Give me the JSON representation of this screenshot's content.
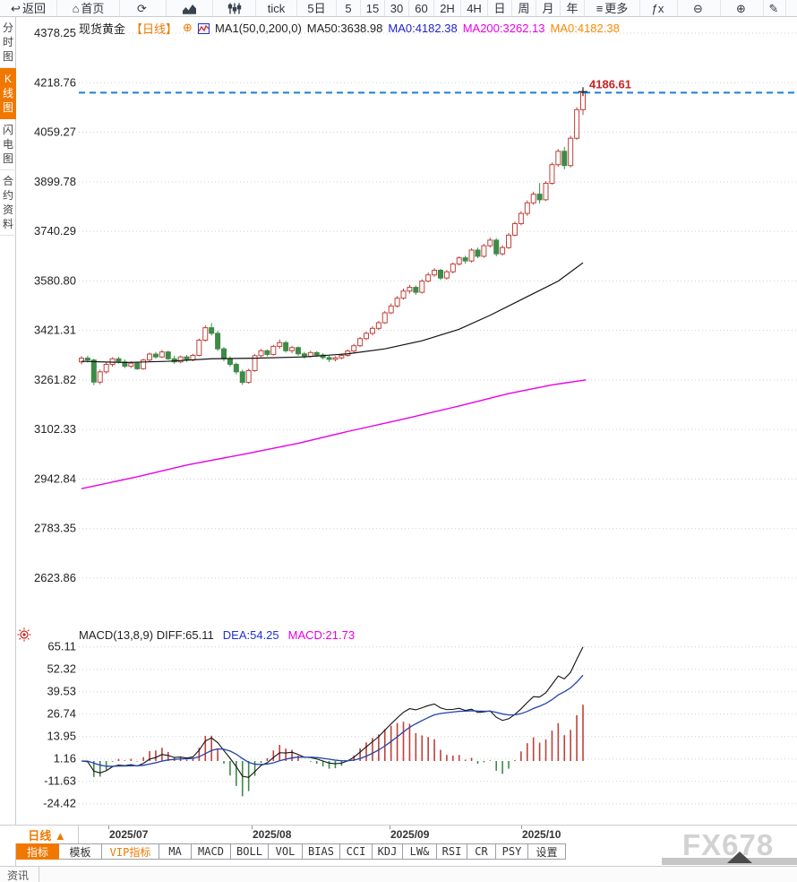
{
  "top_toolbar": {
    "items": [
      {
        "name": "back-button",
        "icon": "↩",
        "label": "返回"
      },
      {
        "name": "home-button",
        "icon": "⌂",
        "label": "首页"
      },
      {
        "name": "refresh-button",
        "icon": "⟳"
      },
      {
        "name": "area-chart-button",
        "icon": "@area"
      },
      {
        "name": "candlestick-button",
        "icon": "@candle"
      },
      {
        "name": "interval-tick-button",
        "label": "tick"
      },
      {
        "name": "interval-5d-button",
        "label": "5日"
      },
      {
        "name": "interval-5-button",
        "label": "5"
      },
      {
        "name": "interval-15-button",
        "label": "15"
      },
      {
        "name": "interval-30-button",
        "label": "30"
      },
      {
        "name": "interval-60-button",
        "label": "60"
      },
      {
        "name": "interval-2h-button",
        "label": "2H"
      },
      {
        "name": "interval-4h-button",
        "label": "4H"
      },
      {
        "name": "interval-day-button",
        "label": "日"
      },
      {
        "name": "interval-week-button",
        "label": "周"
      },
      {
        "name": "interval-month-button",
        "label": "月"
      },
      {
        "name": "interval-year-button",
        "label": "年"
      },
      {
        "name": "more-button",
        "icon": "≡",
        "label": "更多"
      },
      {
        "name": "formula-button",
        "icon": "ƒx"
      },
      {
        "name": "zoom-out-button",
        "icon": "⊖"
      },
      {
        "name": "zoom-in-button",
        "icon": "⊕"
      },
      {
        "name": "draw-button",
        "icon": "✎"
      }
    ]
  },
  "sidebar": {
    "items": [
      {
        "name": "tab-time-chart",
        "label": "分时图",
        "active": false
      },
      {
        "name": "tab-kline-chart",
        "label": "K线图",
        "active": true
      },
      {
        "name": "tab-lightning-chart",
        "label": "闪电图",
        "active": false
      },
      {
        "name": "tab-contract-info",
        "label": "合约资料",
        "active": false
      }
    ]
  },
  "chart_header": {
    "symbol": "现货黄金",
    "period": "【日线】",
    "plus_icon": "⊕",
    "ma_config": "MA1(50,0,200,0)",
    "ma50": "MA50:3638.98",
    "ma0_blue": "MA0:4182.38",
    "ma200": "MA200:3262.13",
    "ma0_orange": "MA0:4182.38"
  },
  "macd_header": {
    "main": "MACD(13,8,9) DIFF:65.11",
    "dea": "DEA:54.25",
    "macd": "MACD:21.73"
  },
  "chart_data": {
    "type": "candlestick",
    "symbol": "现货黄金",
    "period": "日线",
    "last_price": 4186.61,
    "y_ticks": [
      4378.25,
      4218.76,
      4059.27,
      3899.78,
      3740.29,
      3580.8,
      3421.31,
      3261.82,
      3102.33,
      2942.84,
      2783.35,
      2623.86
    ],
    "x_labels": [
      "2025/07",
      "2025/08",
      "2025/09",
      "2025/10"
    ],
    "candles": [
      [
        3320,
        3338,
        3312,
        3332
      ],
      [
        3332,
        3340,
        3318,
        3326
      ],
      [
        3326,
        3330,
        3245,
        3255
      ],
      [
        3255,
        3295,
        3248,
        3288
      ],
      [
        3288,
        3318,
        3282,
        3312
      ],
      [
        3312,
        3335,
        3305,
        3330
      ],
      [
        3330,
        3336,
        3315,
        3320
      ],
      [
        3320,
        3328,
        3300,
        3306
      ],
      [
        3306,
        3322,
        3300,
        3316
      ],
      [
        3316,
        3320,
        3294,
        3298
      ],
      [
        3298,
        3330,
        3295,
        3326
      ],
      [
        3326,
        3350,
        3320,
        3345
      ],
      [
        3345,
        3352,
        3330,
        3336
      ],
      [
        3336,
        3358,
        3332,
        3352
      ],
      [
        3352,
        3356,
        3326,
        3330
      ],
      [
        3330,
        3340,
        3314,
        3320
      ],
      [
        3320,
        3340,
        3316,
        3336
      ],
      [
        3336,
        3342,
        3320,
        3326
      ],
      [
        3326,
        3346,
        3322,
        3341
      ],
      [
        3341,
        3395,
        3338,
        3390
      ],
      [
        3390,
        3438,
        3385,
        3430
      ],
      [
        3430,
        3445,
        3405,
        3412
      ],
      [
        3412,
        3420,
        3355,
        3362
      ],
      [
        3362,
        3368,
        3322,
        3330
      ],
      [
        3330,
        3338,
        3305,
        3312
      ],
      [
        3312,
        3318,
        3280,
        3288
      ],
      [
        3288,
        3295,
        3246,
        3254
      ],
      [
        3254,
        3298,
        3250,
        3292
      ],
      [
        3292,
        3345,
        3288,
        3340
      ],
      [
        3340,
        3362,
        3335,
        3356
      ],
      [
        3356,
        3360,
        3338,
        3344
      ],
      [
        3344,
        3375,
        3340,
        3370
      ],
      [
        3370,
        3392,
        3362,
        3382
      ],
      [
        3382,
        3388,
        3350,
        3356
      ],
      [
        3356,
        3372,
        3348,
        3366
      ],
      [
        3366,
        3370,
        3340,
        3346
      ],
      [
        3346,
        3352,
        3330,
        3338
      ],
      [
        3338,
        3356,
        3334,
        3350
      ],
      [
        3350,
        3354,
        3336,
        3342
      ],
      [
        3342,
        3348,
        3328,
        3334
      ],
      [
        3334,
        3340,
        3320,
        3328
      ],
      [
        3328,
        3338,
        3322,
        3333
      ],
      [
        3333,
        3346,
        3328,
        3341
      ],
      [
        3341,
        3360,
        3336,
        3355
      ],
      [
        3355,
        3378,
        3350,
        3372
      ],
      [
        3372,
        3400,
        3368,
        3395
      ],
      [
        3395,
        3418,
        3390,
        3412
      ],
      [
        3412,
        3435,
        3405,
        3428
      ],
      [
        3428,
        3452,
        3422,
        3446
      ],
      [
        3446,
        3484,
        3442,
        3478
      ],
      [
        3478,
        3508,
        3474,
        3500
      ],
      [
        3500,
        3532,
        3495,
        3525
      ],
      [
        3525,
        3556,
        3520,
        3548
      ],
      [
        3548,
        3568,
        3540,
        3560
      ],
      [
        3560,
        3566,
        3536,
        3544
      ],
      [
        3544,
        3586,
        3540,
        3580
      ],
      [
        3580,
        3608,
        3576,
        3600
      ],
      [
        3600,
        3622,
        3594,
        3615
      ],
      [
        3615,
        3620,
        3584,
        3590
      ],
      [
        3590,
        3616,
        3585,
        3610
      ],
      [
        3610,
        3640,
        3605,
        3635
      ],
      [
        3635,
        3660,
        3630,
        3655
      ],
      [
        3655,
        3662,
        3636,
        3645
      ],
      [
        3645,
        3686,
        3640,
        3680
      ],
      [
        3680,
        3688,
        3654,
        3660
      ],
      [
        3660,
        3700,
        3655,
        3694
      ],
      [
        3694,
        3720,
        3688,
        3712
      ],
      [
        3712,
        3718,
        3660,
        3668
      ],
      [
        3668,
        3695,
        3662,
        3688
      ],
      [
        3688,
        3735,
        3684,
        3728
      ],
      [
        3728,
        3772,
        3724,
        3765
      ],
      [
        3765,
        3805,
        3760,
        3798
      ],
      [
        3798,
        3840,
        3790,
        3832
      ],
      [
        3832,
        3868,
        3826,
        3860
      ],
      [
        3860,
        3896,
        3830,
        3842
      ],
      [
        3842,
        3902,
        3838,
        3895
      ],
      [
        3895,
        3962,
        3890,
        3955
      ],
      [
        3955,
        4005,
        3948,
        3998
      ],
      [
        3998,
        4012,
        3940,
        3952
      ],
      [
        3952,
        4048,
        3946,
        4040
      ],
      [
        4040,
        4140,
        4035,
        4132
      ],
      [
        4132,
        4190,
        4115,
        4186.61
      ]
    ],
    "ma50_points": [
      [
        0,
        3322
      ],
      [
        7,
        3318
      ],
      [
        14,
        3322
      ],
      [
        21,
        3330
      ],
      [
        28,
        3332
      ],
      [
        36,
        3336
      ],
      [
        43,
        3346
      ],
      [
        49,
        3362
      ],
      [
        55,
        3388
      ],
      [
        61,
        3425
      ],
      [
        66,
        3470
      ],
      [
        72,
        3530
      ],
      [
        77,
        3580
      ],
      [
        81,
        3638.98
      ]
    ],
    "ma200_points": [
      [
        0,
        2912
      ],
      [
        9,
        2950
      ],
      [
        17,
        2988
      ],
      [
        26,
        3022
      ],
      [
        35,
        3058
      ],
      [
        43,
        3096
      ],
      [
        52,
        3136
      ],
      [
        61,
        3178
      ],
      [
        69,
        3218
      ],
      [
        76,
        3246
      ],
      [
        81.5,
        3262.13
      ]
    ],
    "macd": {
      "params": "(13,8,9)",
      "diff": 65.11,
      "dea": 54.25,
      "hist": 21.73,
      "y_ticks": [
        65.11,
        52.32,
        39.53,
        26.74,
        13.95,
        1.16,
        -11.63,
        -24.42
      ]
    }
  },
  "bottom": {
    "period_label": "日线 ▲",
    "indicator_tabs": [
      {
        "label": "指标",
        "style": "active"
      },
      {
        "label": "模板",
        "style": ""
      },
      {
        "label": "VIP指标",
        "style": "vip"
      },
      {
        "label": "MA",
        "style": ""
      },
      {
        "label": "MACD",
        "style": ""
      },
      {
        "label": "BOLL",
        "style": ""
      },
      {
        "label": "VOL",
        "style": ""
      },
      {
        "label": "BIAS",
        "style": ""
      },
      {
        "label": "CCI",
        "style": ""
      },
      {
        "label": "KDJ",
        "style": ""
      },
      {
        "label": "LW&",
        "style": ""
      },
      {
        "label": "RSI",
        "style": ""
      },
      {
        "label": "CR",
        "style": ""
      },
      {
        "label": "PSY",
        "style": ""
      },
      {
        "label": "设置",
        "style": ""
      }
    ]
  },
  "watermark": {
    "text": "FX678"
  },
  "bottom_bar": {
    "news_tab": "资讯"
  },
  "colors": {
    "accent": "#f07800",
    "candle_up": "#c0403a",
    "candle_down": "#3d8b47",
    "ma50_line": "#111111",
    "ma200_line": "#e800e8",
    "price_line": "#1b7ed8",
    "price_label": "#cc2222",
    "diff_line": "#111111",
    "dea_line": "#2244aa",
    "grid": "#cfcfcf"
  }
}
